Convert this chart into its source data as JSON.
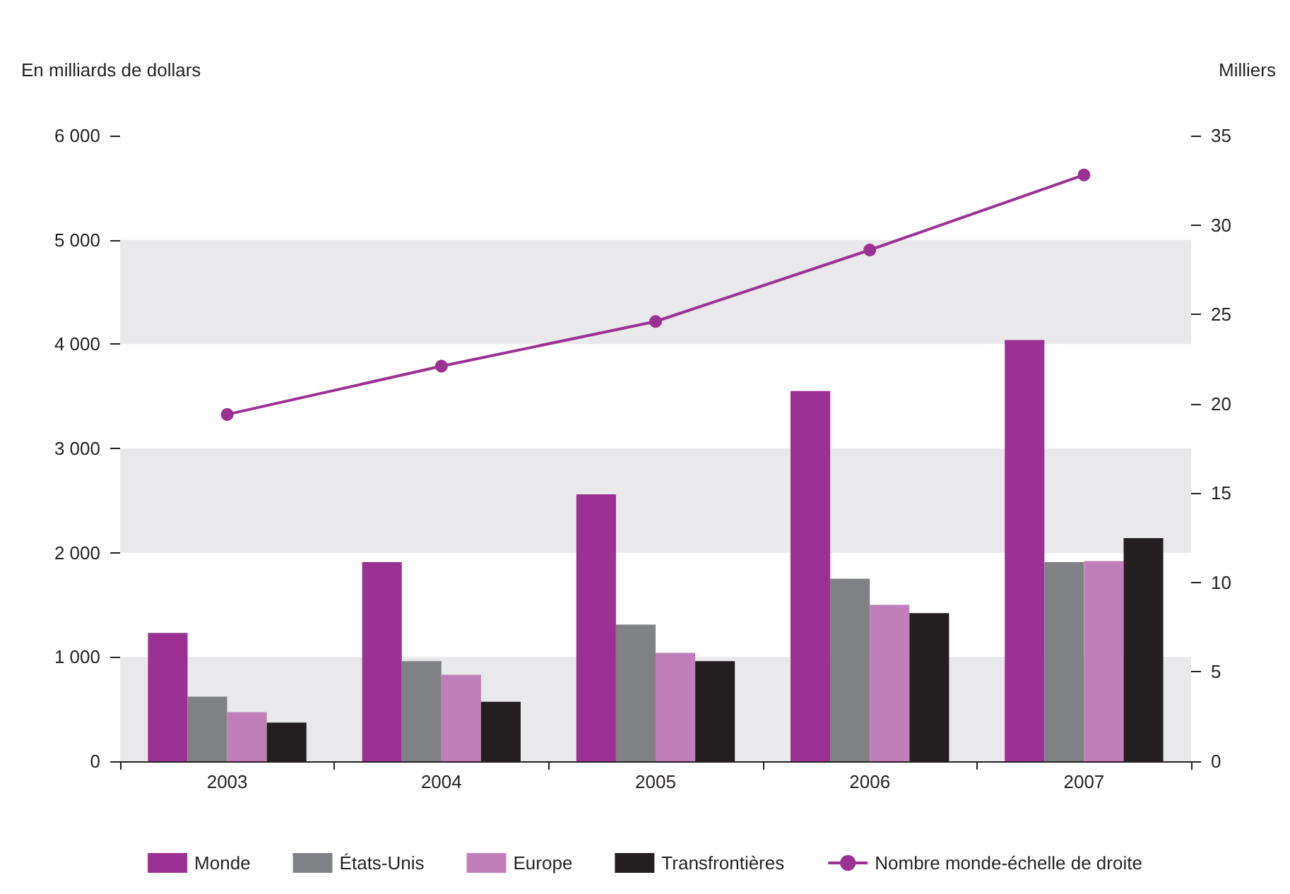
{
  "chart_data": {
    "type": "bar",
    "categories": [
      "2003",
      "2004",
      "2005",
      "2006",
      "2007"
    ],
    "ylabel": "En milliards de dollars",
    "y2label": "Milliers",
    "series": [
      {
        "name": "Monde",
        "color": "#9b3192",
        "values": [
          1230,
          1910,
          2560,
          3550,
          4040
        ]
      },
      {
        "name": "États-Unis",
        "color": "#808184",
        "values": [
          620,
          960,
          1310,
          1750,
          1910
        ]
      },
      {
        "name": "Europe",
        "color": "#c17fba",
        "values": [
          470,
          830,
          1040,
          1500,
          1920
        ]
      },
      {
        "name": "Transfrontières",
        "color": "#231f20",
        "values": [
          370,
          570,
          960,
          1420,
          2140
        ]
      },
      {
        "name": "Nombre monde-échelle de droite",
        "type": "line",
        "axis": "y2",
        "color": "#9b3192",
        "marker": "circle",
        "values": [
          19.4,
          22.1,
          24.6,
          28.6,
          32.8
        ]
      }
    ],
    "ylim": [
      0,
      6000
    ],
    "yticks": [
      {
        "value": 0,
        "label": "0"
      },
      {
        "value": 1000,
        "label": "1 000"
      },
      {
        "value": 2000,
        "label": "2 000"
      },
      {
        "value": 3000,
        "label": "3 000"
      },
      {
        "value": 4000,
        "label": "4 000"
      },
      {
        "value": 5000,
        "label": "5 000"
      },
      {
        "value": 6000,
        "label": "6 000"
      }
    ],
    "y2lim": [
      0,
      35
    ],
    "y2ticks": [
      0,
      5,
      10,
      15,
      20,
      25,
      30,
      35
    ],
    "bands": [
      {
        "axis": "y",
        "from": 0,
        "to": 1000,
        "color": "#e9e9ec"
      },
      {
        "axis": "y",
        "from": 2000,
        "to": 3000,
        "color": "#e9e9ec"
      },
      {
        "axis": "y",
        "from": 4000,
        "to": 5000,
        "color": "#e9e9ec"
      }
    ],
    "legend": "bottom"
  }
}
